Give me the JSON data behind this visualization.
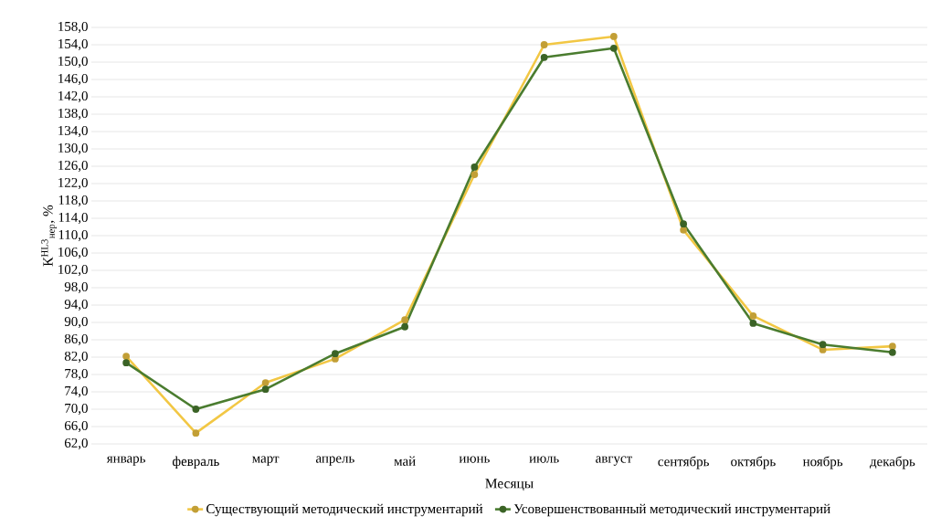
{
  "chart_data": {
    "type": "line",
    "xlabel": "Месяцы",
    "ylabel": "К$^{HL3}$$_{нер}$, %",
    "categories": [
      "январь",
      "февраль",
      "март",
      "апрель",
      "май",
      "июнь",
      "июль",
      "август",
      "сентябрь",
      "октябрь",
      "ноябрь",
      "декабрь"
    ],
    "series": [
      {
        "name": "Существующий методический инструментарий",
        "color": "#f2c744",
        "values": [
          82.2,
          64.5,
          76.1,
          81.6,
          90.6,
          124.1,
          154.0,
          155.9,
          111.3,
          91.5,
          83.7,
          84.5
        ]
      },
      {
        "name": "Усовершенствованный методический инструментарий",
        "color": "#4a7c2f",
        "values": [
          80.7,
          70.0,
          74.6,
          82.8,
          89.0,
          125.8,
          151.1,
          153.2,
          112.7,
          89.8,
          84.9,
          83.1
        ]
      }
    ],
    "ylim": [
      62,
      158
    ],
    "yticks": [
      {
        "value": 62,
        "label": "62,0"
      },
      {
        "value": 66,
        "label": "66,0"
      },
      {
        "value": 70,
        "label": "70,0"
      },
      {
        "value": 74,
        "label": "74,0"
      },
      {
        "value": 78,
        "label": "78,0"
      },
      {
        "value": 82,
        "label": "82,0"
      },
      {
        "value": 86,
        "label": "86,0"
      },
      {
        "value": 90,
        "label": "90,0"
      },
      {
        "value": 94,
        "label": "94,0"
      },
      {
        "value": 98,
        "label": "98,0"
      },
      {
        "value": 102,
        "label": "102,0"
      },
      {
        "value": 106,
        "label": "106,0"
      },
      {
        "value": 110,
        "label": "110,0"
      },
      {
        "value": 114,
        "label": "114,0"
      },
      {
        "value": 118,
        "label": "118,0"
      },
      {
        "value": 122,
        "label": "122,0"
      },
      {
        "value": 126,
        "label": "126,0"
      },
      {
        "value": 130,
        "label": "130,0"
      },
      {
        "value": 134,
        "label": "134,0"
      },
      {
        "value": 138,
        "label": "138,0"
      },
      {
        "value": 142,
        "label": "142,0"
      },
      {
        "value": 146,
        "label": "146,0"
      },
      {
        "value": 150,
        "label": "150,0"
      },
      {
        "value": 154,
        "label": "154,0"
      },
      {
        "value": 158,
        "label": "158,0"
      }
    ],
    "grid": "y",
    "legend": "bottom",
    "marker": "circle",
    "line_style": "solid"
  }
}
